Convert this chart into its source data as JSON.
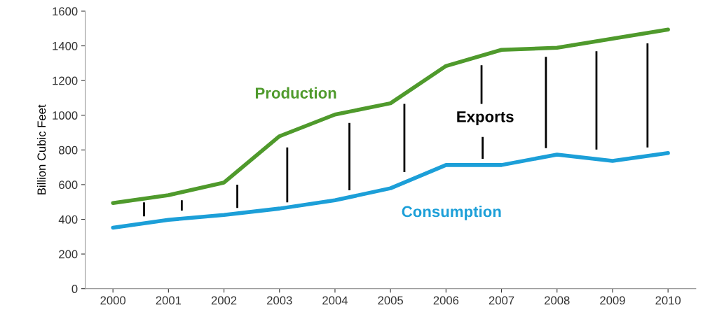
{
  "chart_data": {
    "type": "line",
    "ylabel": "Billion Cubic Feet",
    "x": [
      2000,
      2001,
      2002,
      2003,
      2004,
      2005,
      2006,
      2007,
      2008,
      2009,
      2010
    ],
    "xlim": [
      1999.5,
      2010.5
    ],
    "xticks": [
      2000,
      2001,
      2002,
      2003,
      2004,
      2005,
      2006,
      2007,
      2008,
      2009,
      2010
    ],
    "ylim": [
      0,
      1600
    ],
    "yticks": [
      0,
      200,
      400,
      600,
      800,
      1000,
      1200,
      1400,
      1600
    ],
    "grid": false,
    "legend": false,
    "series": [
      {
        "name": "Production",
        "color": "#4f9a2c",
        "values": [
          494,
          539,
          612,
          879,
          1004,
          1069,
          1284,
          1377,
          1389,
          1442,
          1494
        ]
      },
      {
        "name": "Consumption",
        "color": "#1c9fd8",
        "values": [
          352,
          397,
          425,
          462,
          510,
          579,
          713,
          713,
          773,
          737,
          782
        ]
      },
      {
        "name": "Exports",
        "type": "bar",
        "color": "#000000",
        "x": [
          2000.56,
          2001.24,
          2002.24,
          2003.14,
          2004.26,
          2005.25,
          2006.64,
          2006.66,
          2007.8,
          2008.71,
          2009.63
        ],
        "base": [
          417,
          450,
          466,
          498,
          567,
          672,
          1065,
          749,
          810,
          802,
          814
        ],
        "values": [
          81,
          60,
          134,
          316,
          389,
          393,
          223,
          126,
          527,
          567,
          600
        ]
      }
    ]
  }
}
